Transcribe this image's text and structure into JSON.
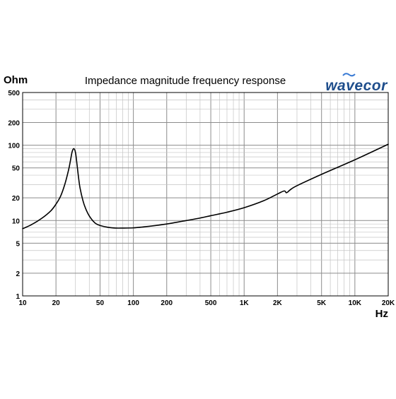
{
  "chart_data": {
    "type": "line",
    "title": "Impedance magnitude frequency response",
    "ylabel": "Ohm",
    "xlabel": "Hz",
    "x_scale": "log",
    "y_scale": "log",
    "xlim": [
      10,
      20000
    ],
    "ylim": [
      1,
      500
    ],
    "grid": true,
    "x_ticks": [
      10,
      20,
      50,
      100,
      200,
      500,
      1000,
      2000,
      5000,
      10000,
      20000
    ],
    "x_tick_labels": [
      "10",
      "20",
      "50",
      "100",
      "200",
      "500",
      "1K",
      "2K",
      "5K",
      "10K",
      "20K"
    ],
    "y_ticks": [
      1,
      2,
      5,
      10,
      20,
      50,
      100,
      200,
      500
    ],
    "y_tick_labels": [
      "1",
      "2",
      "5",
      "10",
      "20",
      "50",
      "100",
      "200",
      "500"
    ],
    "series": [
      {
        "color": "#000000",
        "x": [
          10,
          12,
          15,
          18,
          20,
          22,
          24,
          26,
          27,
          28,
          29,
          30,
          31,
          32,
          33,
          35,
          37,
          40,
          45,
          50,
          60,
          70,
          80,
          100,
          120,
          150,
          200,
          300,
          400,
          500,
          700,
          1000,
          1500,
          2000,
          2300,
          2400,
          2500,
          2600,
          3000,
          5000,
          10000,
          20000
        ],
        "y": [
          7.8,
          8.8,
          10.8,
          13.5,
          16.5,
          21,
          30,
          47,
          62,
          82,
          90,
          80,
          55,
          37,
          27,
          18.5,
          14.5,
          11.5,
          9.3,
          8.6,
          8.1,
          7.95,
          7.95,
          8.0,
          8.2,
          8.5,
          9.0,
          10.0,
          10.8,
          11.6,
          12.9,
          14.8,
          18.3,
          22.5,
          24.7,
          23.4,
          24.2,
          25.5,
          29,
          41,
          64,
          103
        ]
      }
    ]
  },
  "logo": {
    "text": "wavecor",
    "color": "#1f4e8c"
  }
}
